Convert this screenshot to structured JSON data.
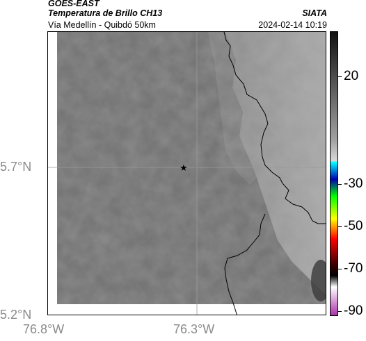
{
  "header": {
    "title_line1": "GOES-EAST",
    "title_line2": "Temperatura de Brillo CH13",
    "subtitle": "Vía Medellín - Quibdó 50km",
    "agency": "SIATA",
    "timestamp": "2024-02-14 10:19"
  },
  "map": {
    "lat_labels": [
      "5.7°N",
      "5.2°N"
    ],
    "lon_labels": [
      "76.8°W",
      "76.3°W"
    ],
    "marker": "star-marker"
  },
  "colorbar": {
    "labels": [
      "20",
      "-30",
      "-50",
      "-70",
      "-90"
    ],
    "colors": [
      "#111111",
      "#555555",
      "#a0a0a0",
      "#d8d8d8",
      "#00ffff",
      "#0000b0",
      "#00ff00",
      "#ffff00",
      "#ff0000",
      "#400000",
      "#ffffff",
      "#aa33aa"
    ]
  }
}
